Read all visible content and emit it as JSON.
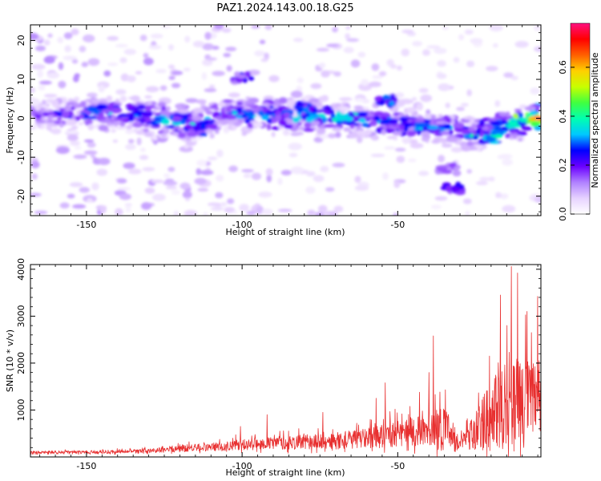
{
  "chart_data": [
    {
      "type": "heatmap",
      "title": "PAZ1.2024.143.00.18.G25",
      "xlabel": "Height of straight line (km)",
      "ylabel": "Frequency (Hz)",
      "xlim": [
        -168,
        -4
      ],
      "ylim": [
        -25,
        24
      ],
      "xticks": [
        -150,
        -100,
        -50
      ],
      "xtick_labels": [
        "-150",
        "-100",
        "-50"
      ],
      "yticks": [
        20,
        10,
        0,
        -10,
        -20
      ],
      "ytick_labels": [
        "20",
        "10",
        "0",
        "-10",
        "-20"
      ],
      "colorbar": {
        "label": "Normalized spectral amplitude",
        "range": [
          0,
          0.78
        ],
        "ticks": [
          0.0,
          0.2,
          0.4,
          0.6
        ],
        "tick_labels": [
          "0.0",
          "0.2",
          "0.4",
          "0.6"
        ],
        "colormap": [
          "#ffffff",
          "#e6d2ff",
          "#b080ff",
          "#6a00ff",
          "#0000ff",
          "#00c8ff",
          "#00ffb0",
          "#40ff40",
          "#c8ff00",
          "#ffd000",
          "#ff6000",
          "#ff0000",
          "#ff1080"
        ]
      },
      "ridge": {
        "x": [
          -166,
          -155,
          -145,
          -135,
          -125,
          -115,
          -105,
          -95,
          -85,
          -75,
          -65,
          -55,
          -45,
          -35,
          -25,
          -15,
          -8,
          -4
        ],
        "y": [
          0.5,
          1.0,
          1.5,
          1.0,
          -0.5,
          -1.5,
          1.5,
          1.0,
          0.5,
          0.5,
          -0.5,
          -1.0,
          -2.0,
          -2.5,
          -4.5,
          -2.0,
          0.0,
          0.0
        ],
        "peak": [
          0.18,
          0.28,
          0.32,
          0.3,
          0.35,
          0.33,
          0.32,
          0.34,
          0.36,
          0.38,
          0.36,
          0.34,
          0.32,
          0.34,
          0.38,
          0.4,
          0.55,
          0.78
        ]
      },
      "features": [
        {
          "x": -100,
          "y": 10.5,
          "amp": 0.22
        },
        {
          "x": -53,
          "y": 4.5,
          "amp": 0.28
        },
        {
          "x": -34,
          "y": -13,
          "amp": 0.16
        },
        {
          "x": -32,
          "y": -18,
          "amp": 0.22
        },
        {
          "x": -115,
          "y": -3,
          "amp": 0.26
        },
        {
          "x": -80,
          "y": 3,
          "amp": 0.3
        },
        {
          "x": -66,
          "y": 0,
          "amp": 0.34
        },
        {
          "x": -20,
          "y": -5,
          "amp": 0.36
        },
        {
          "x": -10,
          "y": 0,
          "amp": 0.5
        }
      ]
    },
    {
      "type": "line",
      "xlabel": "Height of straight line (km)",
      "ylabel": "SNR (10 * v/v)",
      "xlim": [
        -168,
        -4
      ],
      "ylim": [
        0,
        4100
      ],
      "xticks": [
        -150,
        -100,
        -50
      ],
      "xtick_labels": [
        "-150",
        "-100",
        "-50"
      ],
      "yticks": [
        1000,
        2000,
        3000,
        4000
      ],
      "ytick_labels": [
        "1000",
        "2000",
        "3000",
        "4000"
      ],
      "color": "#e83030",
      "envelope": {
        "x": [
          -168,
          -150,
          -130,
          -120,
          -110,
          -100,
          -90,
          -80,
          -70,
          -60,
          -55,
          -50,
          -45,
          -40,
          -35,
          -30,
          -25,
          -20,
          -15,
          -12,
          -9,
          -6,
          -4
        ],
        "base": [
          80,
          90,
          110,
          160,
          180,
          230,
          250,
          270,
          280,
          350,
          380,
          420,
          450,
          480,
          480,
          200,
          480,
          650,
          800,
          900,
          850,
          900,
          900
        ],
        "amp": [
          80,
          80,
          100,
          180,
          200,
          260,
          300,
          350,
          380,
          500,
          600,
          650,
          700,
          800,
          1200,
          300,
          1000,
          1700,
          2400,
          2600,
          2200,
          2000,
          2300
        ]
      },
      "spikes": [
        {
          "x": -100.5,
          "y": 650
        },
        {
          "x": -92,
          "y": 900
        },
        {
          "x": -74,
          "y": 950
        },
        {
          "x": -57,
          "y": 1250
        },
        {
          "x": -54,
          "y": 1580
        },
        {
          "x": -43,
          "y": 1380
        },
        {
          "x": -40,
          "y": 1800
        },
        {
          "x": -38.5,
          "y": 2580
        },
        {
          "x": -20.5,
          "y": 2150
        },
        {
          "x": -17,
          "y": 3450
        },
        {
          "x": -13.5,
          "y": 4060
        },
        {
          "x": -11.5,
          "y": 3920
        },
        {
          "x": -8.5,
          "y": 3100
        },
        {
          "x": -7,
          "y": 2650
        },
        {
          "x": -5,
          "y": 3420
        }
      ]
    }
  ]
}
